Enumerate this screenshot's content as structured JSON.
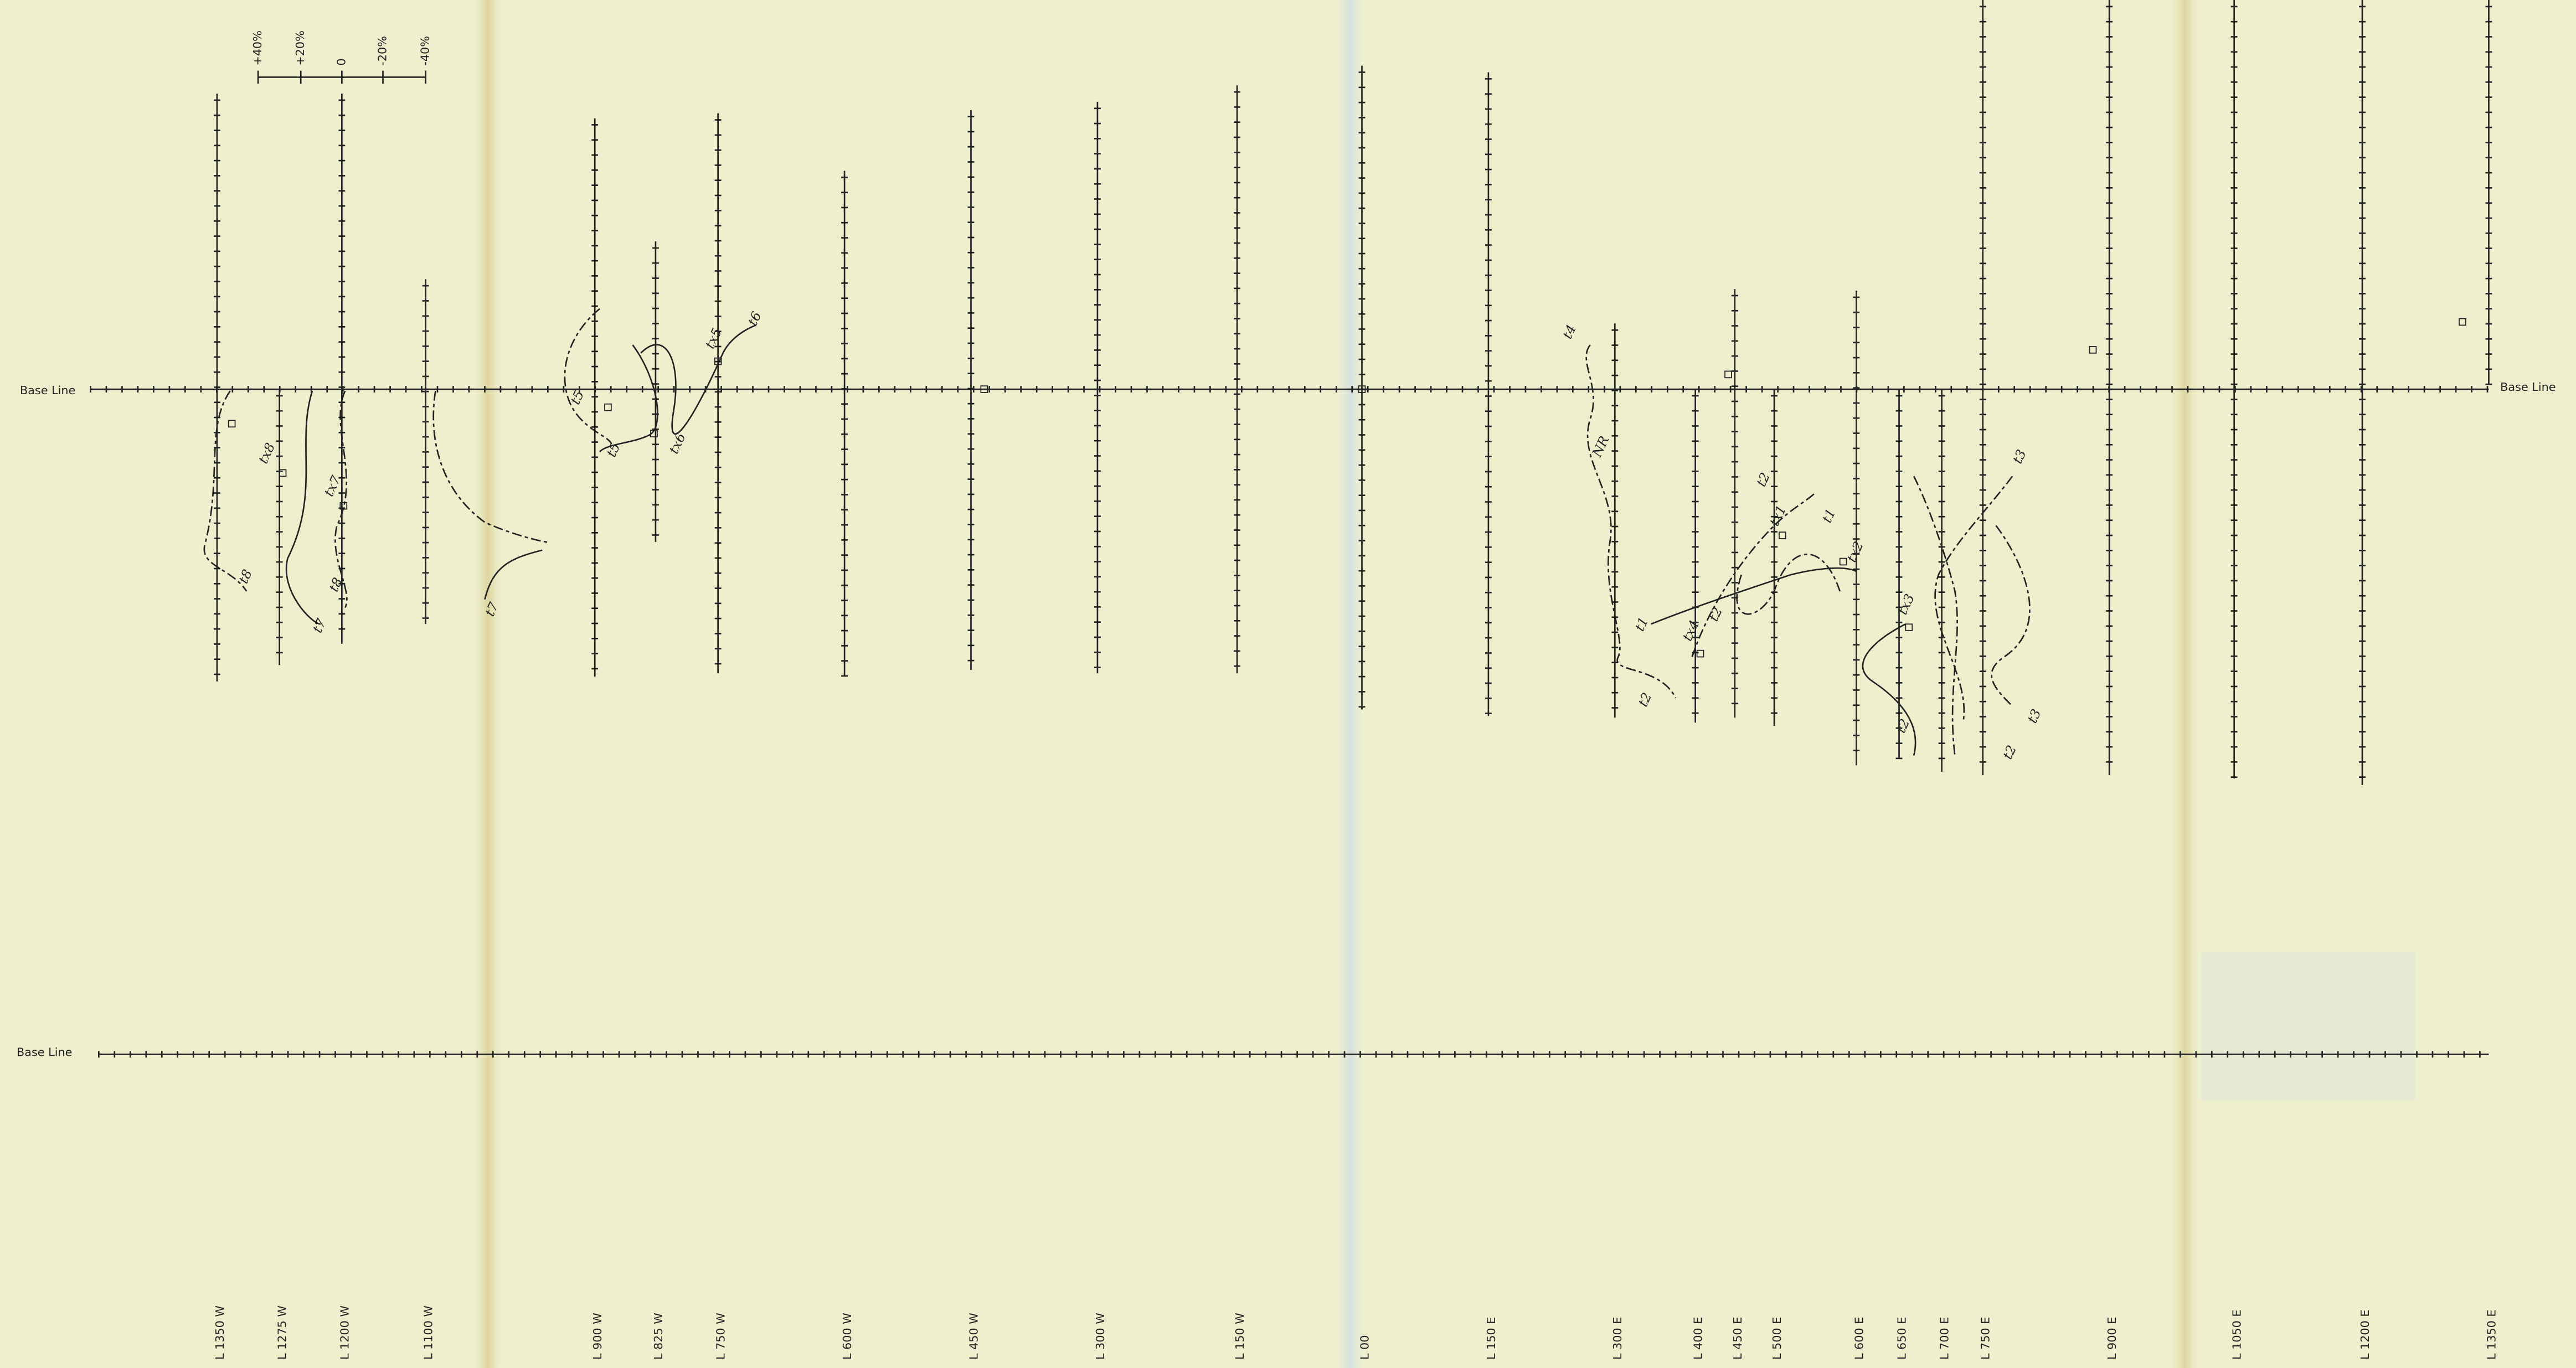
{
  "base_line_labels": [
    "Base Line",
    "Base Line",
    "Base Line"
  ],
  "scale_labels": [
    "+40%",
    "+20%",
    "0",
    "-20%",
    "-40%"
  ],
  "line_labels": [
    "L 1350 W",
    "L 1275 W",
    "L 1200 W",
    "L 1100 W",
    "L 900 W",
    "L 825 W",
    "L 750 W",
    "L 600 W",
    "L 450 W",
    "L 300 W",
    "L 150 W",
    "L 00",
    "L 150 E",
    "L 300 E",
    "L 400 E",
    "L 450 E",
    "L 500 E",
    "L 600 E",
    "L 650 E",
    "L 700 E",
    "L 750 E",
    "L 900 E",
    "L 1050 E",
    "L 1200 E",
    "L 1350 E"
  ],
  "annotations": [
    "t8",
    "tx8",
    "tx7",
    "t8",
    "t7",
    "t7",
    "t5",
    "t5",
    "tx6",
    "tx5",
    "t6",
    "t4",
    "NR",
    "t2",
    "t1",
    "tx4",
    "t2",
    "tx1",
    "t2",
    "t1",
    "tx2",
    "tx3",
    "t2",
    "t3",
    "t2",
    "t3"
  ]
}
